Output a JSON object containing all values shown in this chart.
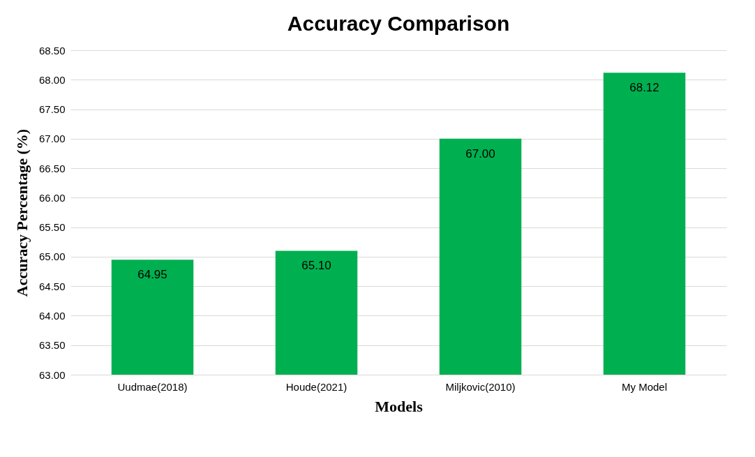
{
  "chart_data": {
    "type": "bar",
    "title": "Accuracy Comparison",
    "xlabel": "Models",
    "ylabel": "Accuracy Percentage (%)",
    "categories": [
      "Uudmae(2018)",
      "Houde(2021)",
      "Miljkovic(2010)",
      "My Model"
    ],
    "values": [
      64.95,
      65.1,
      67.0,
      68.12
    ],
    "value_labels": [
      "64.95",
      "65.10",
      "67.00",
      "68.12"
    ],
    "color": "#00b050",
    "ylim": [
      63,
      68.5
    ],
    "yticks": [
      {
        "value": 63,
        "label": "63.00"
      },
      {
        "value": 63.5,
        "label": "63.50"
      },
      {
        "value": 64,
        "label": "64.00"
      },
      {
        "value": 64.5,
        "label": "64.50"
      },
      {
        "value": 65,
        "label": "65.00"
      },
      {
        "value": 65.5,
        "label": "65.50"
      },
      {
        "value": 66,
        "label": "66.00"
      },
      {
        "value": 66.5,
        "label": "66.50"
      },
      {
        "value": 67,
        "label": "67.00"
      },
      {
        "value": 67.5,
        "label": "67.50"
      },
      {
        "value": 68,
        "label": "68.00"
      },
      {
        "value": 68.5,
        "label": "68.50"
      }
    ],
    "grid": "y"
  }
}
